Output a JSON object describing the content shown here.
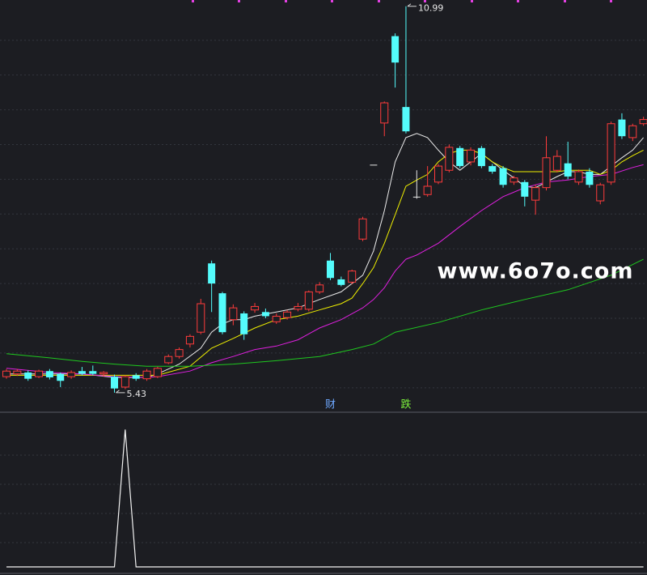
{
  "chart_data": [
    {
      "type": "candlestick",
      "open": [
        5.66,
        5.7,
        5.72,
        5.66,
        5.74,
        5.7,
        5.66,
        5.74,
        5.74,
        5.7,
        5.66,
        5.51,
        5.68,
        5.63,
        5.66,
        5.86,
        5.95,
        6.13,
        6.3,
        7.29,
        6.86,
        6.48,
        6.57,
        6.62,
        6.59,
        6.45,
        6.51,
        6.63,
        6.63,
        6.88,
        7.33,
        7.06,
        7.02,
        7.64,
        8.71,
        9.31,
        10.56,
        9.54,
        8.25,
        8.28,
        8.46,
        8.63,
        8.95,
        8.75,
        8.95,
        8.69,
        8.66,
        8.46,
        8.46,
        8.2,
        8.38,
        8.63,
        8.73,
        8.46,
        8.61,
        8.19,
        8.46,
        9.36,
        9.1,
        9.3
      ],
      "high": [
        5.77,
        5.77,
        5.75,
        5.76,
        5.77,
        5.72,
        5.75,
        5.8,
        5.82,
        5.74,
        5.69,
        5.68,
        5.71,
        5.77,
        5.8,
        5.98,
        6.08,
        6.27,
        6.78,
        7.33,
        6.88,
        6.7,
        6.6,
        6.72,
        6.64,
        6.57,
        6.62,
        6.72,
        6.9,
        7.02,
        7.44,
        7.1,
        7.2,
        7.96,
        8.71,
        9.62,
        10.6,
        10.99,
        8.63,
        8.69,
        8.72,
        9.0,
        8.98,
        8.96,
        8.98,
        8.72,
        8.69,
        8.55,
        8.49,
        8.42,
        9.12,
        8.92,
        9.04,
        8.64,
        8.66,
        8.45,
        9.33,
        9.45,
        9.3,
        9.4
      ],
      "low": [
        5.63,
        5.67,
        5.6,
        5.64,
        5.62,
        5.51,
        5.63,
        5.68,
        5.68,
        5.66,
        5.43,
        5.48,
        5.6,
        5.6,
        5.64,
        5.84,
        5.92,
        6.08,
        6.27,
        6.59,
        6.27,
        6.4,
        6.19,
        6.58,
        6.5,
        6.42,
        6.48,
        6.6,
        6.6,
        6.85,
        7.05,
        6.96,
        6.99,
        7.61,
        8.71,
        9.12,
        9.82,
        9.16,
        8.22,
        8.25,
        8.43,
        8.6,
        8.66,
        8.7,
        8.66,
        8.58,
        8.38,
        8.42,
        8.11,
        7.99,
        8.34,
        8.6,
        8.5,
        8.42,
        8.38,
        8.14,
        8.42,
        9.08,
        9.05,
        9.27
      ],
      "close": [
        5.74,
        5.74,
        5.63,
        5.74,
        5.65,
        5.6,
        5.72,
        5.7,
        5.7,
        5.72,
        5.49,
        5.66,
        5.63,
        5.74,
        5.78,
        5.95,
        6.05,
        6.24,
        6.71,
        7.0,
        6.3,
        6.65,
        6.27,
        6.67,
        6.53,
        6.53,
        6.59,
        6.67,
        6.88,
        6.98,
        7.08,
        6.98,
        7.18,
        7.93,
        8.71,
        9.6,
        10.18,
        9.19,
        8.25,
        8.4,
        8.69,
        8.96,
        8.69,
        8.92,
        8.69,
        8.61,
        8.42,
        8.52,
        8.25,
        8.38,
        8.81,
        8.83,
        8.54,
        8.61,
        8.42,
        8.42,
        9.3,
        9.12,
        9.27,
        9.36
      ],
      "up_color": "#ff3b3b",
      "down_color": "#54fcfc",
      "doji_color": "#e6e6e6",
      "ylim": [
        5.16,
        11.08
      ],
      "yticks": [
        5.5,
        6,
        6.5,
        7,
        7.5,
        8,
        8.5,
        9,
        9.5,
        10,
        10.5
      ],
      "grid": true,
      "lines": [
        {
          "color": "#ececec",
          "x": [
            0,
            7,
            10,
            13,
            14,
            16,
            18,
            19,
            20,
            21,
            22,
            23,
            25,
            27,
            29,
            31,
            33,
            34,
            35,
            36,
            37,
            38,
            39,
            40,
            41,
            42,
            43,
            44,
            45,
            46,
            47,
            48,
            49,
            50,
            51,
            52,
            53,
            54,
            55,
            56,
            57,
            58,
            59
          ],
          "values": [
            5.7,
            5.7,
            5.65,
            5.65,
            5.7,
            5.84,
            6.07,
            6.3,
            6.42,
            6.48,
            6.48,
            6.53,
            6.59,
            6.65,
            6.77,
            6.88,
            7.12,
            7.47,
            8.05,
            8.75,
            9.1,
            9.16,
            9.1,
            8.92,
            8.75,
            8.63,
            8.75,
            8.87,
            8.75,
            8.63,
            8.52,
            8.4,
            8.38,
            8.46,
            8.54,
            8.61,
            8.61,
            8.57,
            8.57,
            8.69,
            8.81,
            8.92,
            9.1
          ]
        },
        {
          "color": "#f0f000",
          "x": [
            0,
            14,
            17,
            19,
            21,
            23,
            25,
            27,
            29,
            31,
            32,
            33,
            34,
            35,
            36,
            37,
            38,
            39,
            40,
            41,
            42,
            43,
            44,
            45,
            46,
            47,
            48,
            49,
            50,
            51,
            52,
            53,
            54,
            55,
            56,
            57,
            58,
            59
          ],
          "values": [
            5.68,
            5.68,
            5.81,
            6.07,
            6.21,
            6.36,
            6.48,
            6.53,
            6.62,
            6.71,
            6.79,
            7.0,
            7.23,
            7.58,
            7.99,
            8.4,
            8.49,
            8.57,
            8.75,
            8.87,
            8.92,
            8.92,
            8.87,
            8.75,
            8.67,
            8.61,
            8.61,
            8.61,
            8.61,
            8.61,
            8.63,
            8.63,
            8.63,
            8.57,
            8.63,
            8.75,
            8.84,
            8.92
          ]
        },
        {
          "color": "#e020e0",
          "x": [
            0,
            4,
            7,
            10,
            13,
            14,
            17,
            19,
            21,
            23,
            25,
            27,
            29,
            31,
            33,
            34,
            35,
            36,
            37,
            38,
            40,
            42,
            44,
            46,
            48,
            50,
            52,
            54,
            56,
            58,
            59
          ],
          "values": [
            5.78,
            5.72,
            5.7,
            5.66,
            5.65,
            5.66,
            5.74,
            5.86,
            5.95,
            6.05,
            6.1,
            6.19,
            6.36,
            6.48,
            6.65,
            6.77,
            6.94,
            7.18,
            7.35,
            7.41,
            7.58,
            7.82,
            8.05,
            8.25,
            8.38,
            8.46,
            8.49,
            8.54,
            8.57,
            8.67,
            8.71
          ]
        },
        {
          "color": "#1fc81f",
          "x": [
            0,
            4,
            7,
            10,
            13,
            17,
            21,
            25,
            29,
            32,
            34,
            36,
            40,
            44,
            48,
            52,
            56,
            59
          ],
          "values": [
            5.99,
            5.93,
            5.88,
            5.84,
            5.81,
            5.81,
            5.84,
            5.89,
            5.95,
            6.05,
            6.13,
            6.3,
            6.44,
            6.62,
            6.77,
            6.91,
            7.12,
            7.35
          ]
        }
      ],
      "max_label": {
        "index": 37,
        "value": 10.99
      },
      "min_label": {
        "index": 10,
        "value": 5.43
      },
      "annotations": [
        {
          "text": "财",
          "index": 30,
          "color": "#6ea8ff"
        },
        {
          "text": "跌",
          "index": 37,
          "color": "#7cf03c"
        }
      ],
      "watermark": "www.6o7o.com"
    },
    {
      "type": "line",
      "color": "#f2f2f2",
      "ylim": [
        0,
        1.12
      ],
      "values": [
        0,
        0,
        0,
        0,
        0,
        0,
        0,
        0,
        0,
        0,
        0,
        1,
        0,
        0,
        0,
        0,
        0,
        0,
        0,
        0,
        0,
        0,
        0,
        0,
        0,
        0,
        0,
        0,
        0,
        0,
        0,
        0,
        0,
        0,
        0,
        0,
        0,
        0,
        0,
        0,
        0,
        0,
        0,
        0,
        0,
        0,
        0,
        0,
        0,
        0,
        0,
        0,
        0,
        0,
        0,
        0,
        0,
        0,
        0,
        0
      ]
    }
  ]
}
